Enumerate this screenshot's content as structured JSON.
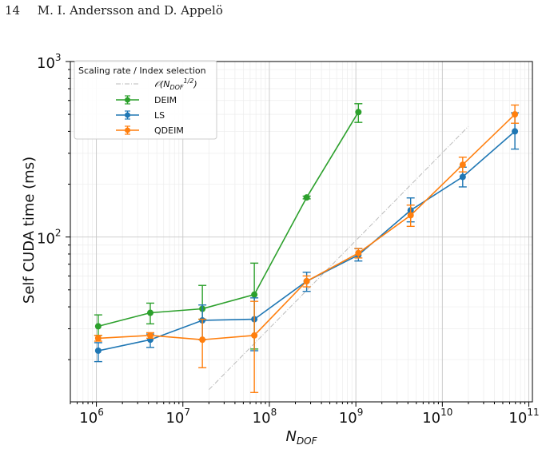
{
  "page": {
    "number": "14",
    "authors": "M. I. Andersson and D. Appelö"
  },
  "chart_data": {
    "type": "line",
    "xscale": "log",
    "yscale": "log",
    "xlim": [
      500000.0,
      110000000000.0
    ],
    "ylim": [
      11.5,
      1000
    ],
    "xlabel": "N_DOF",
    "ylabel": "Self CUDA time (ms)",
    "x_ticks": [
      {
        "base": "10",
        "exp": "6",
        "value": 1000000.0
      },
      {
        "base": "10",
        "exp": "7",
        "value": 10000000.0
      },
      {
        "base": "10",
        "exp": "8",
        "value": 100000000.0
      },
      {
        "base": "10",
        "exp": "9",
        "value": 1000000000.0
      },
      {
        "base": "10",
        "exp": "10",
        "value": 10000000000.0
      },
      {
        "base": "10",
        "exp": "11",
        "value": 100000000000.0
      }
    ],
    "y_ticks": [
      {
        "base": "10",
        "exp": "2",
        "value": 100
      },
      {
        "base": "10",
        "exp": "3",
        "value": 1000
      }
    ],
    "grid": true,
    "legend": {
      "placement": "top-left",
      "title": "Scaling rate / Index selection",
      "reference_label": "O(N_DOF^1/2)"
    },
    "reference_line": {
      "x": [
        20000000.0,
        20000000000.0
      ],
      "y": [
        13.5,
        427
      ],
      "color": "#bbbbbb"
    },
    "x": [
      1050000.0,
      4200000.0,
      16800000.0,
      67000000.0,
      270000000.0,
      1070000000.0,
      4300000000.0,
      17200000000.0,
      69000000000.0
    ],
    "series": [
      {
        "name": "DEIM",
        "color": "#2ca02c",
        "points": [
          {
            "x": 1050000.0,
            "y": 31,
            "lo": 27.5,
            "hi": 36
          },
          {
            "x": 4200000.0,
            "y": 37,
            "lo": 32,
            "hi": 42
          },
          {
            "x": 16800000.0,
            "y": 39,
            "lo": 34,
            "hi": 53
          },
          {
            "x": 67000000.0,
            "y": 47,
            "lo": 23,
            "hi": 71
          },
          {
            "x": 270000000.0,
            "y": 168,
            "lo": 165,
            "hi": 171
          },
          {
            "x": 1070000000.0,
            "y": 515,
            "lo": 450,
            "hi": 575
          }
        ]
      },
      {
        "name": "LS",
        "color": "#1f77b4",
        "points": [
          {
            "x": 1050000.0,
            "y": 22.5,
            "lo": 19.5,
            "hi": 25
          },
          {
            "x": 4200000.0,
            "y": 26,
            "lo": 23.5,
            "hi": 28
          },
          {
            "x": 16800000.0,
            "y": 33.5,
            "lo": 26,
            "hi": 41
          },
          {
            "x": 67000000.0,
            "y": 34,
            "lo": 22.5,
            "hi": 45
          },
          {
            "x": 270000000.0,
            "y": 56,
            "lo": 49,
            "hi": 63
          },
          {
            "x": 1070000000.0,
            "y": 79,
            "lo": 73,
            "hi": 86
          },
          {
            "x": 4300000000.0,
            "y": 142,
            "lo": 122,
            "hi": 167
          },
          {
            "x": 17200000000.0,
            "y": 220,
            "lo": 193,
            "hi": 250
          },
          {
            "x": 69000000000.0,
            "y": 400,
            "lo": 317,
            "hi": 510
          }
        ]
      },
      {
        "name": "QDEIM",
        "color": "#ff7f0e",
        "points": [
          {
            "x": 1050000.0,
            "y": 26.5,
            "lo": 25.5,
            "hi": 27.5
          },
          {
            "x": 4200000.0,
            "y": 27.5,
            "lo": 26.5,
            "hi": 28.5
          },
          {
            "x": 16800000.0,
            "y": 26,
            "lo": 18,
            "hi": 34
          },
          {
            "x": 67000000.0,
            "y": 27.5,
            "lo": 13,
            "hi": 43
          },
          {
            "x": 270000000.0,
            "y": 56,
            "lo": 52,
            "hi": 60
          },
          {
            "x": 1070000000.0,
            "y": 81,
            "lo": 76,
            "hi": 86
          },
          {
            "x": 4300000000.0,
            "y": 133,
            "lo": 115,
            "hi": 152
          },
          {
            "x": 17200000000.0,
            "y": 258,
            "lo": 235,
            "hi": 285
          },
          {
            "x": 69000000000.0,
            "y": 500,
            "lo": 445,
            "hi": 565
          }
        ]
      }
    ]
  }
}
